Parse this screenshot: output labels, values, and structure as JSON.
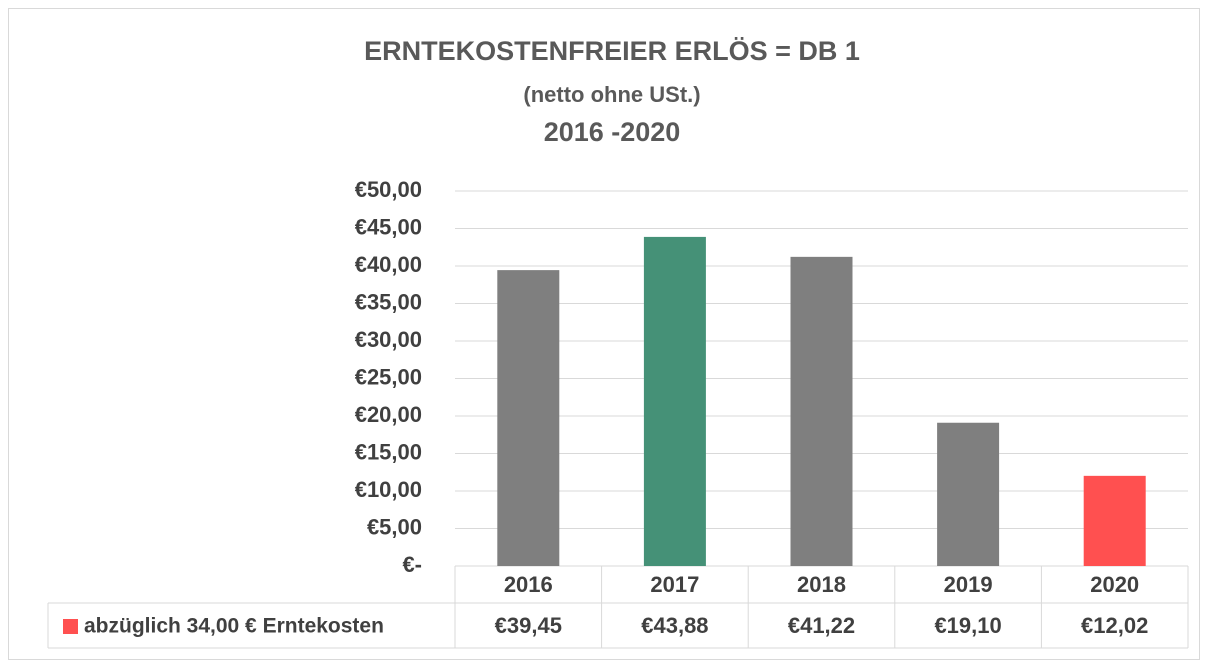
{
  "chart_data": {
    "type": "bar",
    "title": [
      "ERNTEKOSTENFREIER ERLÖS = DB 1",
      "(netto ohne USt.)",
      "2016 -2020"
    ],
    "categories": [
      "2016",
      "2017",
      "2018",
      "2019",
      "2020"
    ],
    "series": [
      {
        "name": "abzüglich 34,00 € Erntekosten",
        "color": "#ff5050",
        "colors": [
          "#7f7f7f",
          "#459177",
          "#7f7f7f",
          "#7f7f7f",
          "#ff5050"
        ],
        "values": [
          39.45,
          43.88,
          41.22,
          19.1,
          12.02
        ],
        "value_labels": [
          "€39,45",
          "€43,88",
          "€41,22",
          "€19,10",
          "€12,02"
        ]
      }
    ],
    "ylim": [
      0,
      50
    ],
    "yticks": [
      {
        "value": 0,
        "label": "€-"
      },
      {
        "value": 5,
        "label": "€5,00"
      },
      {
        "value": 10,
        "label": "€10,00"
      },
      {
        "value": 15,
        "label": "€15,00"
      },
      {
        "value": 20,
        "label": "€20,00"
      },
      {
        "value": 25,
        "label": "€25,00"
      },
      {
        "value": 30,
        "label": "€30,00"
      },
      {
        "value": 35,
        "label": "€35,00"
      },
      {
        "value": 40,
        "label": "€40,00"
      },
      {
        "value": 45,
        "label": "€45,00"
      },
      {
        "value": 50,
        "label": "€50,00"
      }
    ],
    "grid": true,
    "data_table": true
  }
}
